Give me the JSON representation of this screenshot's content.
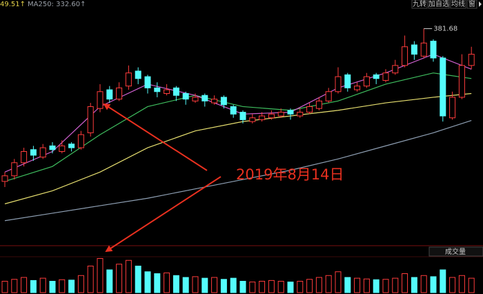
{
  "chart_data": {
    "type": "candlestick",
    "header_left": [
      "49.51↑",
      "MA250: 332.60↑"
    ],
    "toolbar": [
      "九转",
      "加自选",
      "均线",
      "窗"
    ],
    "volume_label": "成交量",
    "annotation": "2019年8月14日",
    "up_color": "#ff3c3c",
    "down_color": "#54fcfc",
    "ylim": [
      266,
      397
    ],
    "open": [
      300,
      303,
      310,
      317,
      313,
      319,
      316,
      320,
      318,
      326,
      339,
      349,
      344,
      351,
      359,
      356,
      350,
      347,
      350,
      347,
      343,
      346,
      342,
      345,
      340,
      337,
      332,
      333,
      334,
      335,
      338,
      335,
      337,
      339,
      343,
      348,
      357,
      349,
      351,
      357,
      354,
      358,
      362,
      373,
      367,
      375,
      366,
      334,
      345,
      362
    ],
    "high": [
      305,
      312,
      318,
      319,
      320,
      321,
      322,
      321,
      327,
      342,
      352,
      351,
      353,
      362,
      361,
      357,
      353,
      352,
      351,
      348,
      347,
      347,
      346,
      346,
      341,
      338,
      336,
      337,
      338,
      339,
      339,
      339,
      342,
      345,
      350,
      361,
      358,
      353,
      358,
      358,
      360,
      365,
      378,
      375,
      381.68,
      376,
      367,
      348,
      368,
      372
    ],
    "low": [
      297,
      301,
      308,
      311,
      312,
      315,
      315,
      316,
      317,
      324,
      337,
      342,
      343,
      349,
      352,
      347,
      345,
      346,
      343,
      341,
      342,
      340,
      341,
      339,
      334,
      331,
      331,
      332,
      333,
      334,
      333,
      334,
      336,
      338,
      342,
      347,
      348,
      348,
      350,
      352,
      353,
      357,
      361,
      365,
      366,
      364,
      332,
      333,
      344,
      360
    ],
    "close": [
      303,
      310,
      316,
      314,
      318,
      317,
      319,
      318,
      325,
      340,
      348,
      344,
      350,
      358,
      355,
      350,
      348,
      349,
      346,
      344,
      345,
      343,
      344,
      341,
      336,
      333,
      334,
      335,
      336,
      337,
      336,
      337,
      340,
      343,
      348,
      356,
      350,
      351,
      356,
      355,
      358,
      362,
      372,
      368,
      374,
      366,
      335,
      345,
      362,
      368
    ],
    "volume": [
      30,
      35,
      40,
      32,
      38,
      30,
      34,
      33,
      45,
      70,
      90,
      60,
      75,
      85,
      70,
      55,
      50,
      52,
      45,
      40,
      42,
      38,
      40,
      35,
      38,
      30,
      28,
      30,
      32,
      30,
      28,
      30,
      35,
      40,
      45,
      55,
      40,
      38,
      36,
      34,
      35,
      38,
      50,
      40,
      45,
      42,
      60,
      40,
      45,
      38
    ],
    "vlim": [
      0,
      100
    ],
    "ma_x": [
      0,
      5,
      10,
      15,
      20,
      25,
      30,
      35,
      40,
      45,
      49
    ],
    "ma_lines": [
      {
        "color": "#8fa0b4",
        "values": [
          279,
          283,
          287,
          291,
          296,
          301,
          306,
          312,
          319,
          326,
          332.6
        ]
      },
      {
        "color": "#e8e070",
        "values": [
          288,
          295,
          305,
          318,
          327,
          332,
          335,
          338,
          342,
          345,
          347
        ]
      },
      {
        "color": "#3fbf5f",
        "values": [
          300,
          308,
          325,
          340,
          346,
          340,
          338,
          343,
          352,
          358,
          355
        ]
      },
      {
        "color": "#d060d0",
        "values": [
          305,
          316,
          340,
          352,
          346,
          336,
          337,
          350,
          358,
          368,
          360
        ]
      }
    ]
  }
}
